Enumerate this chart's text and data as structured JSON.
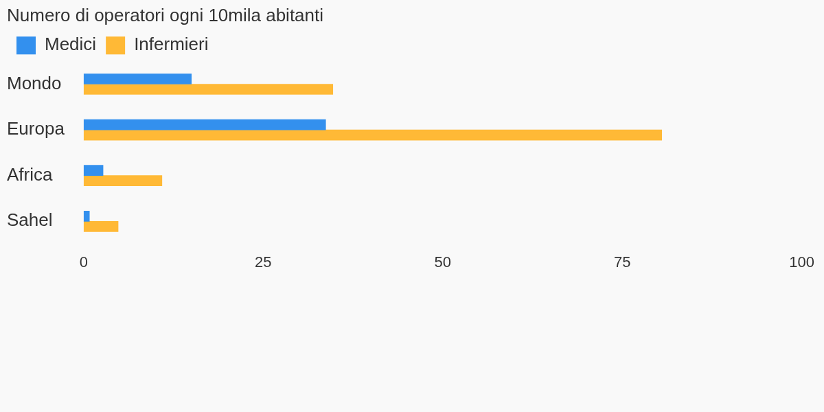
{
  "chart_data": {
    "type": "bar",
    "orientation": "horizontal",
    "title": "Numero di operatori ogni 10mila abitanti",
    "categories": [
      "Mondo",
      "Europa",
      "Africa",
      "Sahel"
    ],
    "series": [
      {
        "name": "Medici",
        "color": "#3390ee",
        "values": [
          15,
          33.7,
          2.7,
          0.8
        ]
      },
      {
        "name": "Infermieri",
        "color": "#ffb936",
        "values": [
          34.7,
          80.5,
          10.9,
          4.8
        ]
      }
    ],
    "xlim": [
      0,
      100
    ],
    "xticks": [
      0,
      25,
      50,
      75,
      100
    ],
    "grid": false,
    "legend": "top left"
  }
}
